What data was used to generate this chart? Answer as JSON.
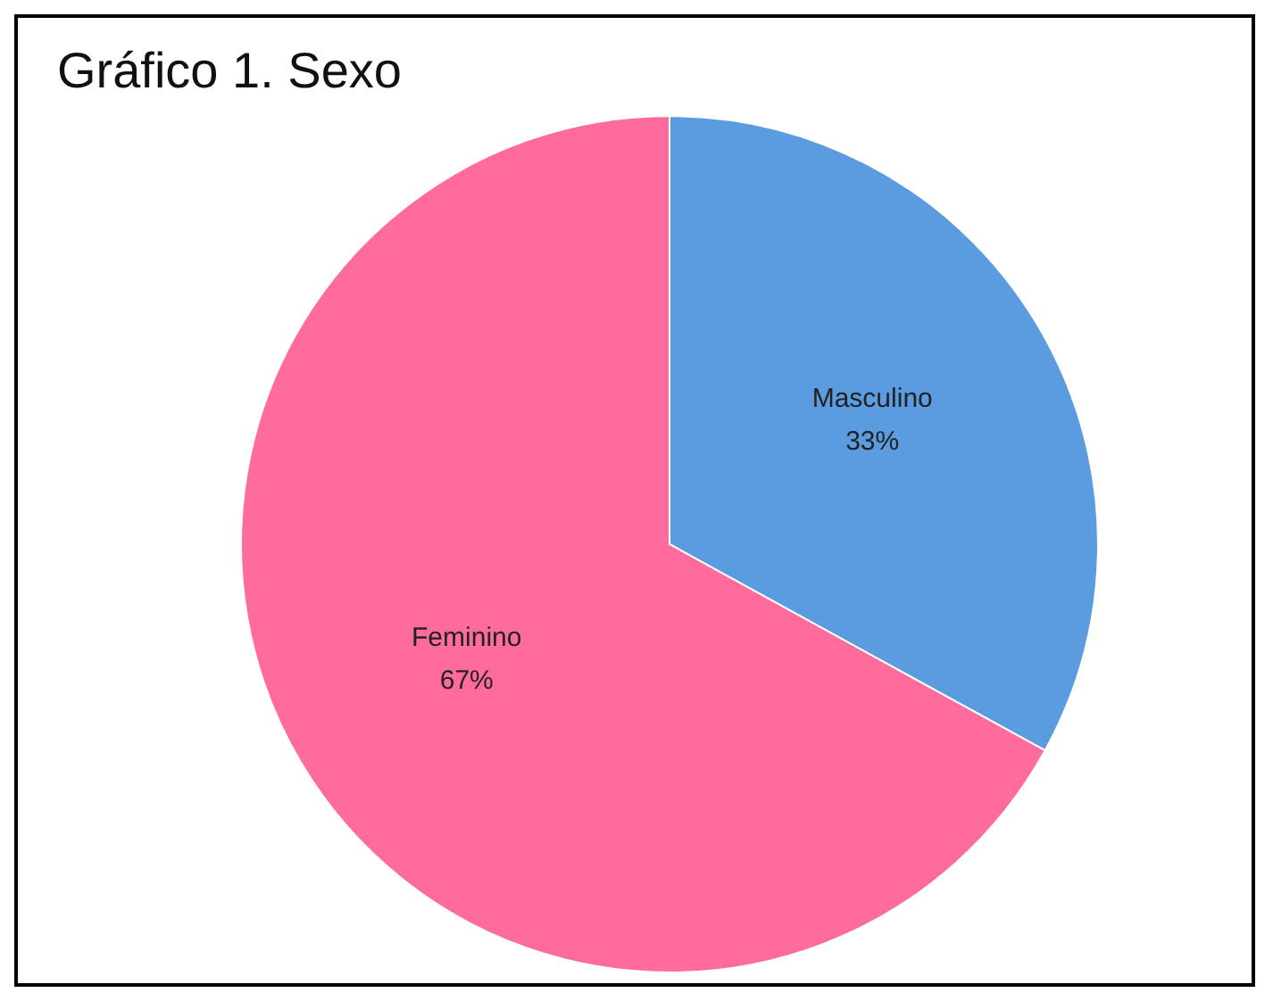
{
  "chart_data": {
    "type": "pie",
    "title": "Gráfico 1. Sexo",
    "categories": [
      "Masculino",
      "Feminino"
    ],
    "values": [
      33,
      67
    ],
    "colors": [
      "#5b9be0",
      "#ff6b9d"
    ],
    "value_labels": [
      "33%",
      "67%"
    ],
    "legend": false
  }
}
